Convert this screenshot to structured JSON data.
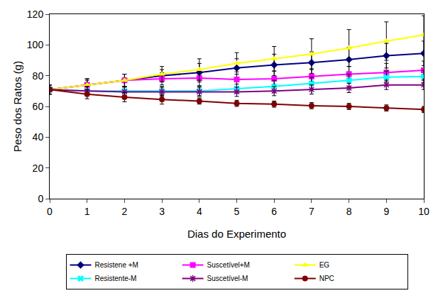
{
  "chart_data": {
    "type": "line",
    "x_label": "Dias do Experimento",
    "y_label": "Peso dos Ratos (g)",
    "x": [
      0,
      1,
      2,
      3,
      4,
      5,
      6,
      7,
      8,
      9,
      10
    ],
    "xlim": [
      0,
      10
    ],
    "xticks": [
      0,
      1,
      2,
      3,
      4,
      5,
      6,
      7,
      8,
      9,
      10
    ],
    "ylim": [
      0,
      120
    ],
    "yticks": [
      0,
      20,
      40,
      60,
      80,
      100,
      120
    ],
    "grid": false,
    "legend": "bottom",
    "series": [
      {
        "name": "Resistene +M",
        "color": "#000080",
        "marker": "diamond",
        "values": [
          71,
          74,
          77,
          80,
          82,
          85,
          87,
          88.5,
          90.5,
          93,
          94.5
        ],
        "errors": [
          3,
          3,
          4,
          4,
          6,
          6,
          7,
          7,
          8,
          8,
          8
        ]
      },
      {
        "name": "Suscetível+M",
        "color": "#FF00FF",
        "marker": "square",
        "values": [
          71,
          74,
          77,
          78,
          78.5,
          77.5,
          78,
          79.5,
          81,
          82,
          83.5
        ],
        "errors": [
          3,
          4,
          4,
          4,
          5,
          5,
          5,
          5,
          5,
          6,
          6
        ]
      },
      {
        "name": "EG",
        "color": "#FFFF00",
        "marker": "triangle",
        "values": [
          71,
          74,
          77,
          81,
          84,
          88,
          91,
          94,
          98,
          102.5,
          106.5
        ],
        "errors": [
          3,
          4,
          4,
          5,
          7,
          7,
          8,
          10,
          12,
          12.5,
          12.5
        ]
      },
      {
        "name": "Resistente-M",
        "color": "#00FFFF",
        "marker": "x",
        "values": [
          71,
          70,
          70,
          70,
          70,
          71.5,
          73,
          75,
          77,
          79,
          79.5
        ],
        "errors": [
          3,
          3,
          3,
          3,
          3,
          3,
          4,
          4,
          4,
          4,
          4
        ]
      },
      {
        "name": "Suscetível-M",
        "color": "#800080",
        "marker": "star",
        "values": [
          71,
          70,
          69.5,
          69.5,
          69.5,
          69.5,
          70,
          71,
          72,
          74,
          74
        ],
        "errors": [
          3,
          3,
          3,
          3,
          3,
          3,
          3,
          3,
          3,
          3,
          3
        ]
      },
      {
        "name": "NPC",
        "color": "#800000",
        "marker": "circle",
        "values": [
          71,
          68,
          66,
          64.5,
          63.5,
          62,
          61.5,
          60.5,
          60,
          59,
          58
        ],
        "errors": [
          3,
          3,
          3,
          3,
          2,
          2,
          2,
          2,
          2,
          2,
          2
        ]
      }
    ]
  }
}
